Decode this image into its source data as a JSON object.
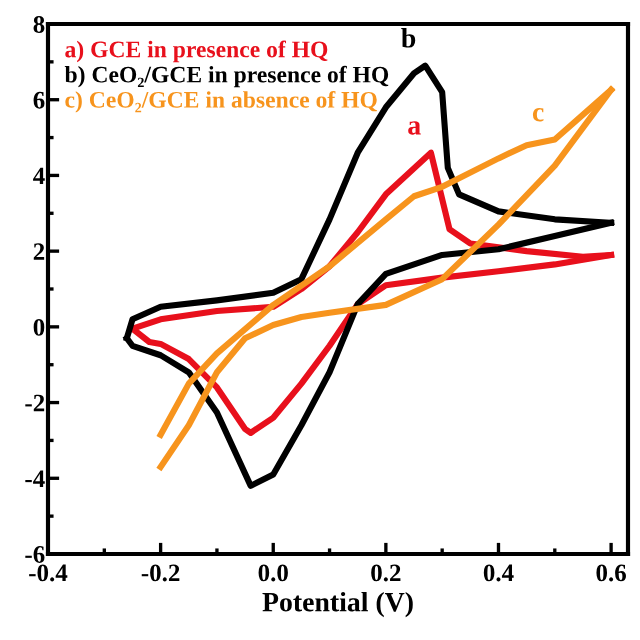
{
  "chart_data": {
    "type": "line",
    "xlabel": "Potential (V)",
    "xlim": [
      -0.4,
      0.63
    ],
    "ylim": [
      -6,
      8
    ],
    "xticks": [
      -0.4,
      -0.2,
      {
        "value": 0,
        "label": "0.0"
      },
      0.2,
      0.4,
      0.6
    ],
    "yticks": [
      -6,
      -4,
      -2,
      0,
      2,
      4,
      6,
      8
    ],
    "grid": false,
    "legend": "top left",
    "marker": "none",
    "line_style": "solid",
    "series": [
      {
        "name": "a) GCE in presence of HQ",
        "color": "#e8101c",
        "x": [
          -0.25,
          -0.22,
          -0.2,
          -0.15,
          -0.1,
          -0.05,
          -0.04,
          0.0,
          0.05,
          0.1,
          0.15,
          0.2,
          0.3,
          0.4,
          0.5,
          0.6
        ],
        "values": [
          -0.05,
          -0.4,
          -0.45,
          -0.85,
          -1.6,
          -2.7,
          -2.8,
          -2.4,
          -1.5,
          -0.5,
          0.6,
          1.1,
          1.3,
          1.47,
          1.65,
          1.9
        ]
      },
      {
        "color": "#e8101c",
        "x": [
          0.6,
          0.55,
          0.45,
          0.35,
          0.313,
          0.28,
          0.2,
          0.15,
          0.1,
          0.05,
          0.0,
          -0.1,
          -0.2,
          -0.25
        ],
        "values": [
          1.9,
          1.85,
          2.0,
          2.2,
          2.58,
          4.6,
          3.5,
          2.5,
          1.6,
          1.0,
          0.53,
          0.42,
          0.2,
          -0.05
        ]
      },
      {
        "name": "b) CeO₂/GCE in presence of HQ",
        "color": "#000000",
        "x": [
          -0.26,
          -0.25,
          -0.2,
          -0.1,
          0.0,
          0.05,
          0.1,
          0.15,
          0.2,
          0.25,
          0.27,
          0.3,
          0.31,
          0.33,
          0.4,
          0.5,
          0.6
        ],
        "values": [
          -0.3,
          0.2,
          0.53,
          0.7,
          0.9,
          1.26,
          2.84,
          4.6,
          5.8,
          6.7,
          6.9,
          6.2,
          4.2,
          3.5,
          3.05,
          2.84,
          2.75
        ]
      },
      {
        "color": "#000000",
        "x": [
          0.6,
          0.5,
          0.4,
          0.3,
          0.2,
          0.15,
          0.1,
          0.05,
          0.0,
          -0.04,
          -0.1,
          -0.15,
          -0.2,
          -0.25,
          -0.26
        ],
        "values": [
          2.75,
          2.4,
          2.05,
          1.9,
          1.4,
          0.6,
          -1.2,
          -2.6,
          -3.9,
          -4.2,
          -2.26,
          -1.2,
          -0.75,
          -0.5,
          -0.3
        ]
      },
      {
        "name": "c) CeO₂/GCE in absence of HQ",
        "color": "#f7941d",
        "x": [
          -0.2,
          -0.15,
          -0.1,
          -0.05,
          0.0,
          0.05,
          0.1,
          0.2,
          0.3,
          0.4,
          0.5,
          0.6
        ],
        "values": [
          -3.7,
          -2.6,
          -1.2,
          -0.3,
          0.05,
          0.26,
          0.37,
          0.58,
          1.26,
          2.7,
          4.26,
          6.26
        ]
      },
      {
        "color": "#f7941d",
        "x": [
          0.6,
          0.5,
          0.45,
          0.4,
          0.3,
          0.25,
          0.2,
          0.1,
          0.0,
          -0.1,
          -0.15,
          -0.2
        ],
        "values": [
          6.26,
          4.95,
          4.8,
          4.45,
          3.7,
          3.45,
          2.84,
          1.6,
          0.58,
          -0.7,
          -1.5,
          -2.85
        ]
      }
    ],
    "annotations": [
      "a",
      "b",
      "c"
    ]
  }
}
